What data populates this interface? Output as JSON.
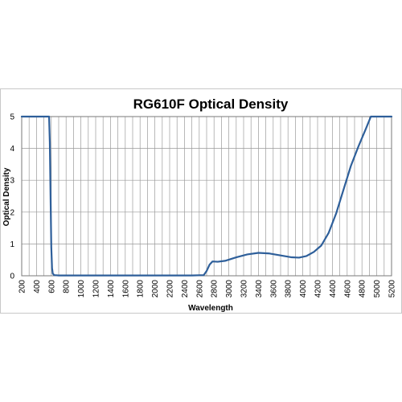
{
  "chart_data": {
    "type": "line",
    "title": "RG610F Optical Density",
    "xlabel": "Wavelength",
    "ylabel": "Optical Density",
    "xlim": [
      200,
      5200
    ],
    "ylim": [
      0,
      5
    ],
    "x_ticks": [
      200,
      400,
      600,
      800,
      1000,
      1200,
      1400,
      1600,
      1800,
      2000,
      2200,
      2400,
      2600,
      2800,
      3000,
      3200,
      3400,
      3600,
      3800,
      4000,
      4200,
      4400,
      4600,
      4800,
      5000,
      5200
    ],
    "x_tick_labels": [
      "200",
      "400",
      "600",
      "800",
      "1000",
      "1200",
      "1400",
      "1600",
      "1800",
      "2000",
      "2200",
      "2400",
      "2600",
      "2800",
      "3000",
      "3200",
      "3400",
      "3600",
      "3800",
      "4000",
      "4200",
      "4400",
      "4600",
      "4800",
      "5000",
      "5200"
    ],
    "y_ticks": [
      0,
      1,
      2,
      3,
      4,
      5
    ],
    "y_tick_labels": [
      "0",
      "1",
      "2",
      "3",
      "4",
      "5"
    ],
    "minor_x_step": 100,
    "grid": true,
    "legend": "none",
    "line_color": "#2e5f9a",
    "series": [
      {
        "values": [
          [
            200,
            5
          ],
          [
            570,
            5
          ],
          [
            580,
            4.2
          ],
          [
            590,
            2.5
          ],
          [
            600,
            0.9
          ],
          [
            610,
            0.25
          ],
          [
            620,
            0.07
          ],
          [
            640,
            0.02
          ],
          [
            700,
            0.01
          ],
          [
            1000,
            0.01
          ],
          [
            1500,
            0.01
          ],
          [
            2000,
            0.01
          ],
          [
            2500,
            0.01
          ],
          [
            2660,
            0.02
          ],
          [
            2700,
            0.15
          ],
          [
            2740,
            0.35
          ],
          [
            2780,
            0.45
          ],
          [
            2850,
            0.44
          ],
          [
            2950,
            0.47
          ],
          [
            3100,
            0.58
          ],
          [
            3250,
            0.67
          ],
          [
            3400,
            0.72
          ],
          [
            3550,
            0.7
          ],
          [
            3700,
            0.64
          ],
          [
            3850,
            0.58
          ],
          [
            3950,
            0.57
          ],
          [
            4050,
            0.62
          ],
          [
            4150,
            0.75
          ],
          [
            4250,
            0.95
          ],
          [
            4350,
            1.35
          ],
          [
            4450,
            1.95
          ],
          [
            4550,
            2.7
          ],
          [
            4650,
            3.45
          ],
          [
            4750,
            4.05
          ],
          [
            4850,
            4.6
          ],
          [
            4920,
            5
          ],
          [
            5200,
            5
          ]
        ]
      }
    ]
  }
}
